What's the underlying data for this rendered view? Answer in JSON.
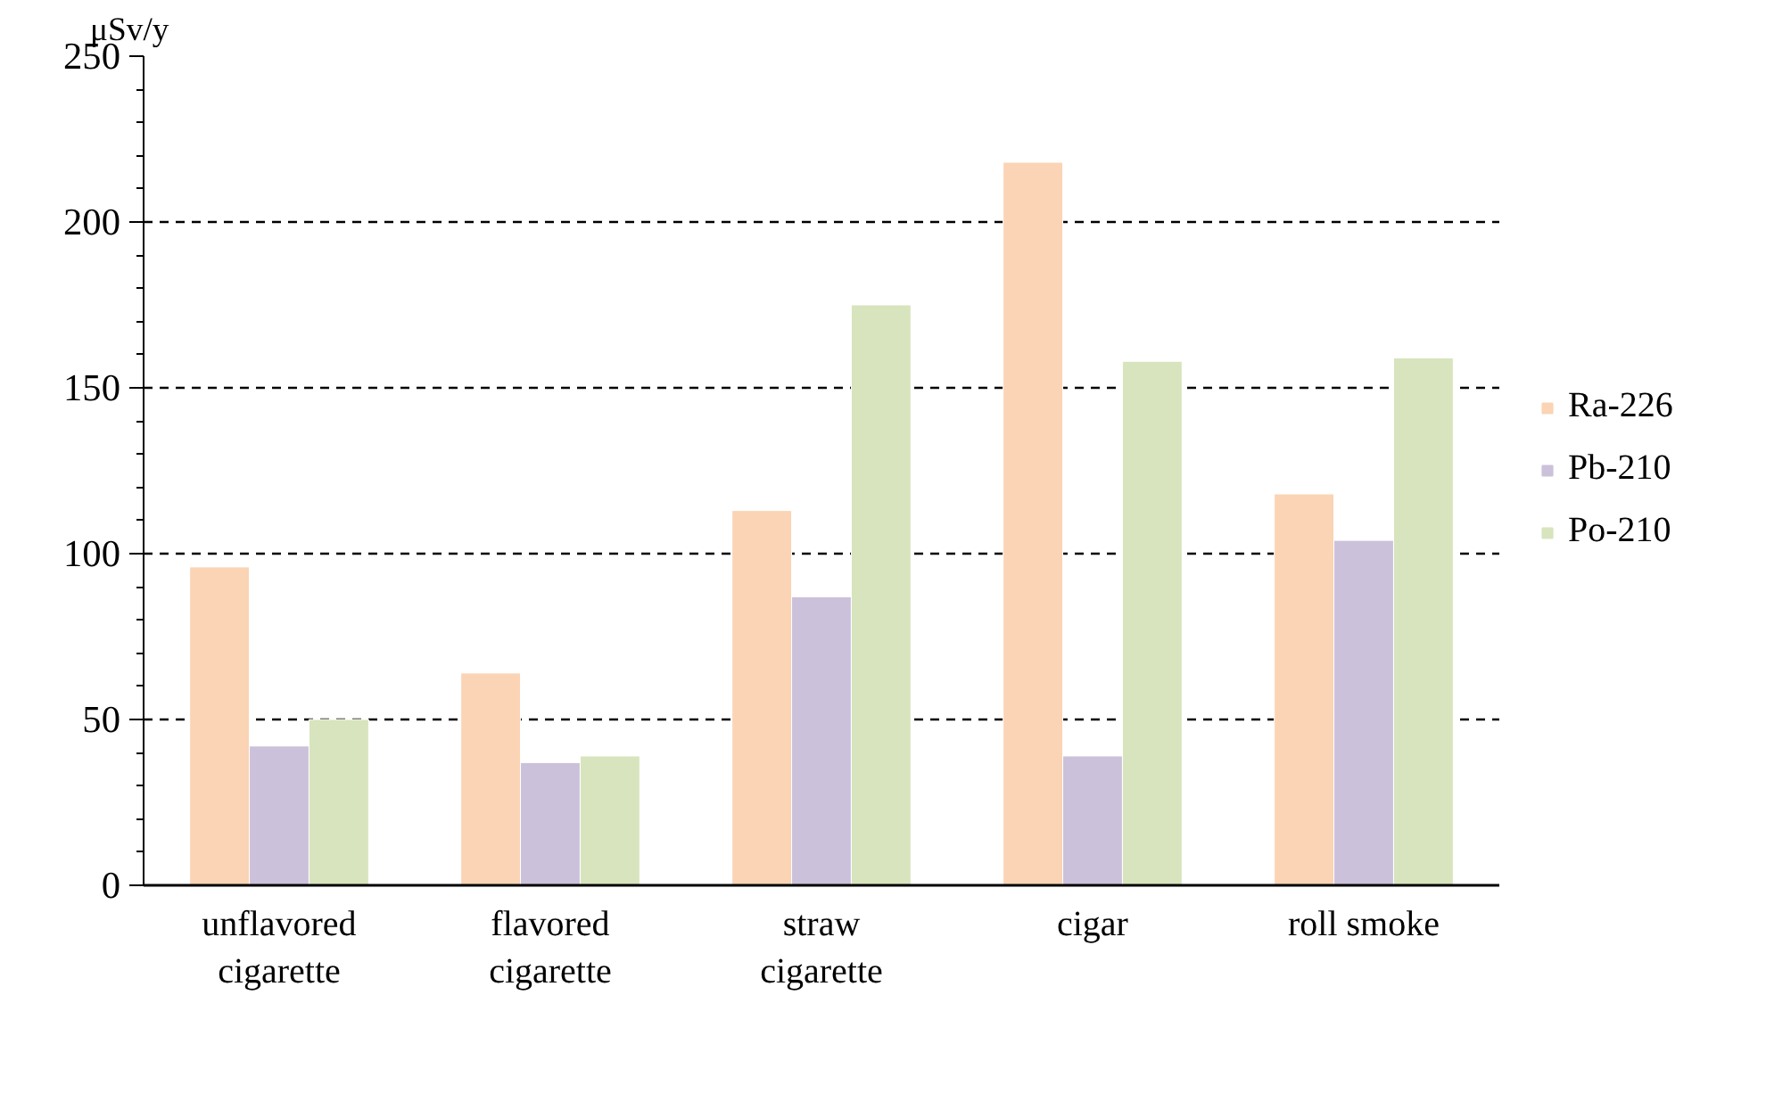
{
  "chart_data": {
    "type": "bar",
    "ylabel": "μSv/y",
    "categories": [
      "unflavored cigarette",
      "flavored cigarette",
      "straw cigarette",
      "cigar",
      "roll smoke"
    ],
    "series": [
      {
        "name": "Ra-226",
        "color": "#fad4b4",
        "values": [
          96,
          64,
          113,
          218,
          118
        ]
      },
      {
        "name": "Pb-210",
        "color": "#ccc1da",
        "values": [
          42,
          37,
          87,
          39,
          104
        ]
      },
      {
        "name": "Po-210",
        "color": "#d8e4bd",
        "values": [
          50,
          39,
          175,
          158,
          159
        ]
      }
    ],
    "ylim": [
      0,
      250
    ],
    "yticks": [
      0,
      50,
      100,
      150,
      200,
      250
    ],
    "grid": "y",
    "legend": "right"
  }
}
